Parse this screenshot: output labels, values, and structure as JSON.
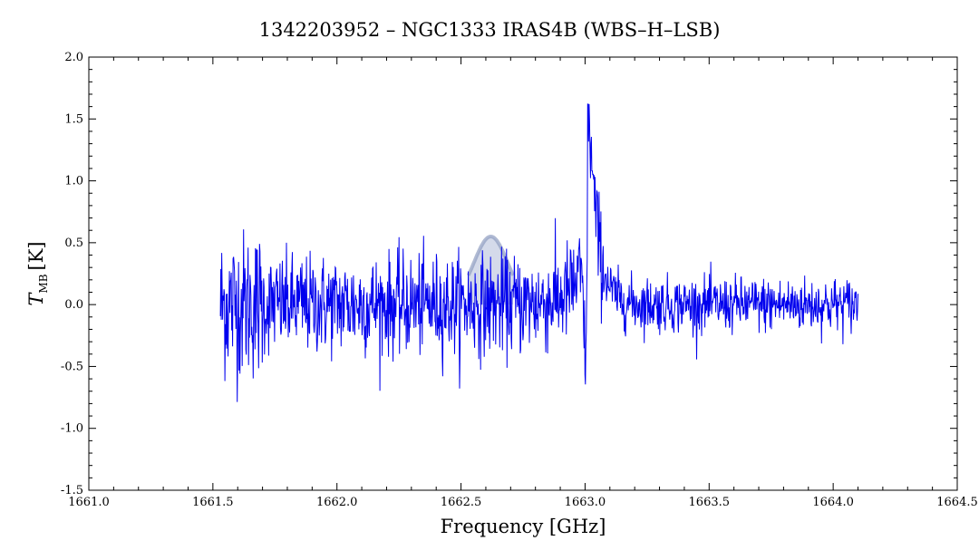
{
  "chart_data": {
    "type": "line",
    "title": "1342203952 – NGC1333 IRAS4B (WBS–H–LSB)",
    "xlabel": "Frequency [GHz]",
    "ylabel_main": "T",
    "ylabel_sub": "MB",
    "ylabel_unit": "[K]",
    "xlim": [
      1661.0,
      1664.5
    ],
    "ylim": [
      -1.5,
      2.0
    ],
    "x_ticks": [
      "1661.0",
      "1662.0",
      "1662.5",
      "1663.0",
      "1663.5",
      "1664.0",
      "1664.5"
    ],
    "x_tick_values": [
      1661.0,
      1662.0,
      1662.5,
      1663.0,
      1663.5,
      1664.0,
      1664.5
    ],
    "y_ticks": [
      "2.0",
      "1.5",
      "1.0",
      "0.5",
      "0.0",
      "-0.5",
      "-1.0",
      "-1.5"
    ],
    "y_tick_values": [
      2.0,
      1.5,
      1.0,
      0.5,
      0.0,
      -0.5,
      -1.0,
      -1.5
    ],
    "extra_x_tick_label": "1661.5",
    "extra_x_tick_value": 1661.5,
    "grid": false,
    "legend": "none",
    "series": [
      {
        "color": "#0000ee",
        "x_range": [
          1661.53,
          1664.1
        ],
        "noise_rms_k": 0.2,
        "features": [
          {
            "kind": "emission",
            "center_ghz": 1663.02,
            "peak_k": 1.6
          },
          {
            "kind": "absorption",
            "center_ghz": 1663.0,
            "min_k": -0.7
          }
        ]
      }
    ],
    "highlight": {
      "center_ghz": 1662.62,
      "width_ghz": 0.18,
      "peak_k": 0.55,
      "color": "#b0bcd8"
    }
  }
}
